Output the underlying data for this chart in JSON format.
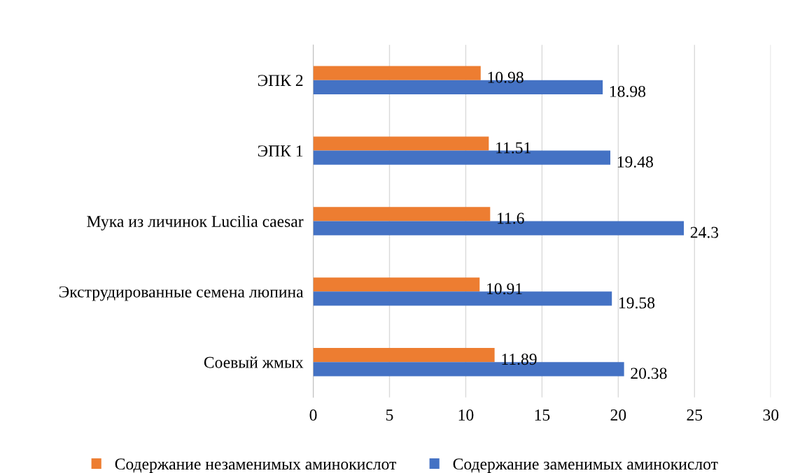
{
  "chart_data": {
    "type": "bar",
    "orientation": "horizontal",
    "categories": [
      "ЭПК 2",
      "ЭПК 1",
      "Мука из личинок Lucilia caesar",
      "Экструдированные семена люпина",
      "Соевый жмых"
    ],
    "series": [
      {
        "name": "Содержание незаменимых аминокислот",
        "color": "#ed7d31",
        "values": [
          10.98,
          11.51,
          11.6,
          10.91,
          11.89
        ]
      },
      {
        "name": "Содержание заменимых аминокислот",
        "color": "#4472c4",
        "values": [
          18.98,
          19.48,
          24.3,
          19.58,
          20.38
        ]
      }
    ],
    "xlim": [
      0,
      30
    ],
    "xticks": [
      0,
      5,
      10,
      15,
      20,
      25,
      30
    ],
    "grid": "x",
    "legend": "bottom",
    "data_labels": true
  }
}
